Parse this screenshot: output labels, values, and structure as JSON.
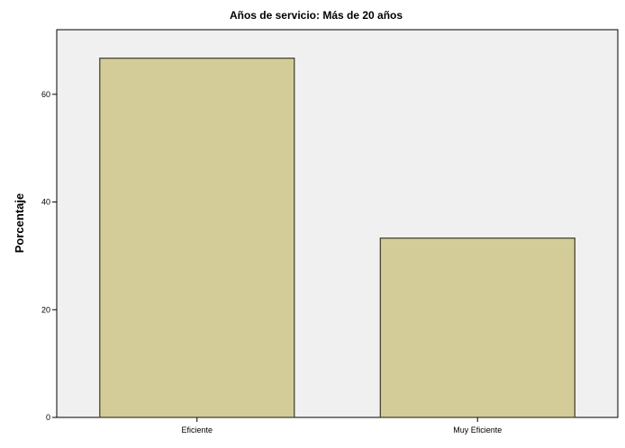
{
  "chart_data": {
    "type": "bar",
    "title": "Años de servicio: Más de 20 años",
    "xlabel": "",
    "ylabel": "Porcentaje",
    "categories": [
      "Eficiente",
      "Muy Eficiente"
    ],
    "values": [
      66.7,
      33.3
    ],
    "ylim": [
      0,
      72
    ],
    "yticks": [
      0,
      20,
      40,
      60
    ],
    "grid": false,
    "legend": "none",
    "colors": {
      "bar_fill": "#d3cc98",
      "bar_stroke": "#3a3a2a",
      "plot_background": "#f0f0f0",
      "axis": "#000000"
    }
  }
}
